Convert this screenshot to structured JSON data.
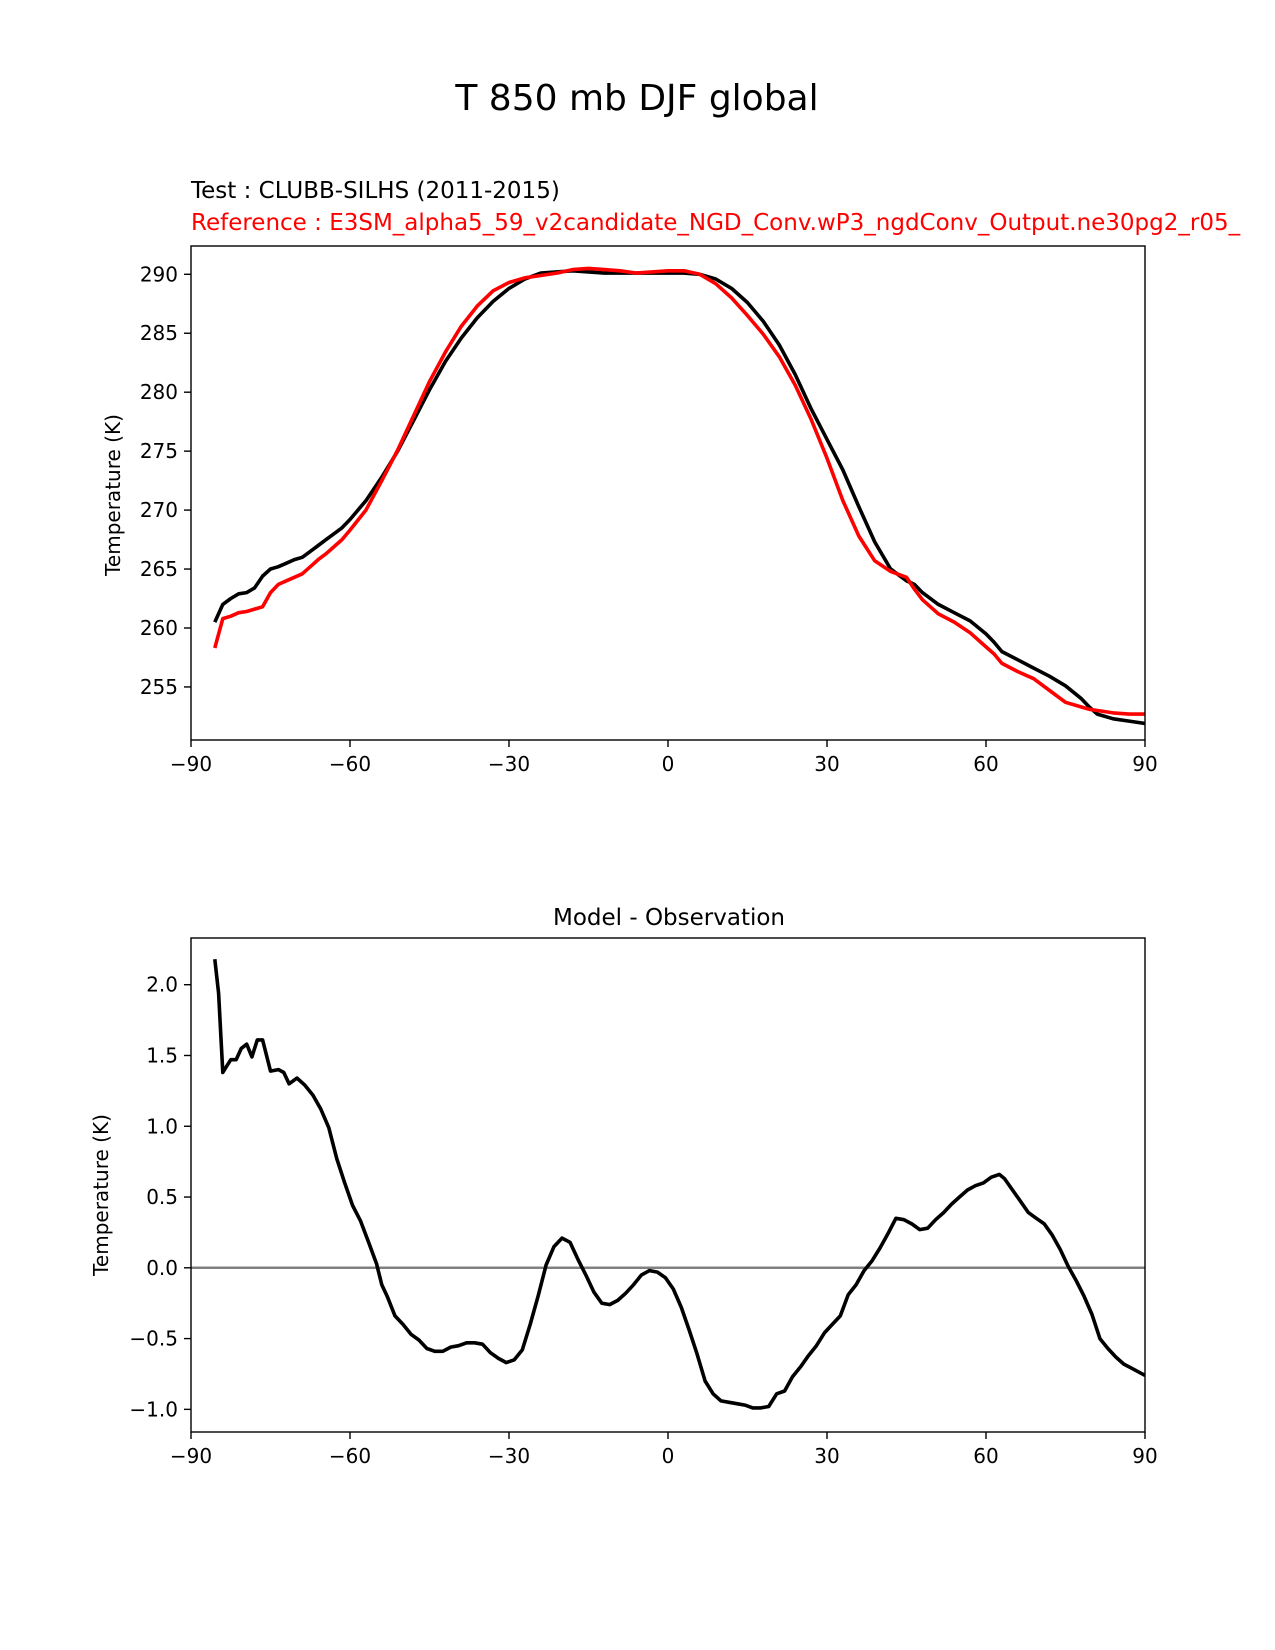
{
  "figure": {
    "suptitle": "T 850 mb DJF global"
  },
  "colors": {
    "test": "#000000",
    "reference": "#ff0000",
    "zero_line": "#808080",
    "axes": "#000000"
  },
  "chart_data": [
    {
      "type": "line",
      "test_label": "Test : CLUBB-SILHS (2011-2015)",
      "reference_label": "Reference : E3SM_alpha5_59_v2candidate_NGD_Conv.wP3_ngdConv_Output.ne30pg2_r05_",
      "xlabel": "",
      "ylabel": "Temperature (K)",
      "xlim": [
        -90,
        90
      ],
      "ylim": [
        250.5,
        292.4
      ],
      "xticks": [
        -90,
        -60,
        -30,
        0,
        30,
        60,
        90
      ],
      "xtick_labels": [
        "−90",
        "−60",
        "−30",
        "0",
        "30",
        "60",
        "90"
      ],
      "yticks": [
        255,
        260,
        265,
        270,
        275,
        280,
        285,
        290
      ],
      "ytick_labels": [
        "255",
        "260",
        "265",
        "270",
        "275",
        "280",
        "285",
        "290"
      ],
      "grid": false,
      "series": [
        {
          "key": "test",
          "x": [
            -85.5,
            -84,
            -82.5,
            -81,
            -79.5,
            -78,
            -76.5,
            -75,
            -73.5,
            -72,
            -70.5,
            -69,
            -67.5,
            -66,
            -64.5,
            -63,
            -61.5,
            -60,
            -57,
            -54,
            -51,
            -48,
            -45,
            -42,
            -39,
            -36,
            -33,
            -30,
            -27,
            -24,
            -21,
            -18,
            -15,
            -12,
            -9,
            -6,
            -3,
            0,
            3,
            6,
            9,
            12,
            15,
            18,
            21,
            24,
            27,
            30,
            33,
            36,
            39,
            42,
            45,
            46.5,
            48,
            51,
            54,
            57,
            60,
            61.5,
            63,
            66,
            69,
            72,
            75,
            78,
            79.5,
            81,
            84,
            87,
            90
          ],
          "values": [
            260.5,
            262.0,
            262.5,
            262.9,
            263.0,
            263.4,
            264.4,
            265.0,
            265.2,
            265.5,
            265.8,
            266.0,
            266.5,
            267.0,
            267.5,
            268.0,
            268.5,
            269.2,
            270.8,
            272.8,
            275.0,
            277.6,
            280.2,
            282.6,
            284.6,
            286.3,
            287.7,
            288.8,
            289.6,
            290.1,
            290.2,
            290.3,
            290.2,
            290.1,
            290.1,
            290.1,
            290.1,
            290.1,
            290.1,
            290.0,
            289.6,
            288.8,
            287.6,
            286.0,
            284.0,
            281.5,
            278.6,
            276.0,
            273.4,
            270.3,
            267.3,
            265.0,
            264.0,
            263.7,
            263.0,
            262.0,
            261.3,
            260.6,
            259.5,
            258.8,
            258.0,
            257.3,
            256.6,
            255.9,
            255.1,
            254.0,
            253.3,
            252.7,
            252.3,
            252.1,
            251.9
          ]
        },
        {
          "key": "reference",
          "x": [
            -85.5,
            -84,
            -82.5,
            -81,
            -79.5,
            -78,
            -76.5,
            -75,
            -73.5,
            -72,
            -70.5,
            -69,
            -67.5,
            -66,
            -64.5,
            -63,
            -61.5,
            -60,
            -57,
            -54,
            -51,
            -48,
            -45,
            -42,
            -39,
            -36,
            -33,
            -30,
            -27,
            -24,
            -21,
            -18,
            -15,
            -12,
            -9,
            -6,
            -3,
            0,
            3,
            6,
            9,
            12,
            15,
            18,
            21,
            24,
            27,
            30,
            33,
            36,
            39,
            42,
            45,
            46.5,
            48,
            51,
            54,
            57,
            60,
            61.5,
            63,
            66,
            69,
            72,
            75,
            78,
            79.5,
            81,
            84,
            87,
            90
          ],
          "values": [
            258.3,
            260.8,
            261.0,
            261.3,
            261.4,
            261.6,
            261.8,
            263.0,
            263.7,
            264.0,
            264.3,
            264.6,
            265.2,
            265.8,
            266.3,
            266.9,
            267.5,
            268.3,
            270.0,
            272.5,
            275.1,
            278.0,
            280.9,
            283.4,
            285.6,
            287.3,
            288.6,
            289.3,
            289.7,
            289.9,
            290.1,
            290.4,
            290.5,
            290.4,
            290.3,
            290.1,
            290.2,
            290.3,
            290.3,
            290.0,
            289.2,
            288.0,
            286.5,
            284.9,
            283.0,
            280.6,
            277.7,
            274.4,
            270.8,
            267.8,
            265.7,
            264.8,
            264.3,
            263.3,
            262.4,
            261.2,
            260.5,
            259.6,
            258.4,
            257.8,
            257.0,
            256.3,
            255.7,
            254.7,
            253.7,
            253.3,
            253.1,
            253.0,
            252.8,
            252.7,
            252.7
          ]
        }
      ]
    },
    {
      "type": "line",
      "title": "Model - Observation",
      "xlabel": "",
      "ylabel": "Temperature (K)",
      "xlim": [
        -90,
        90
      ],
      "ylim": [
        -1.16,
        2.33
      ],
      "xticks": [
        -90,
        -60,
        -30,
        0,
        30,
        60,
        90
      ],
      "xtick_labels": [
        "−90",
        "−60",
        "−30",
        "0",
        "30",
        "60",
        "90"
      ],
      "yticks": [
        -1.0,
        -0.5,
        0.0,
        0.5,
        1.0,
        1.5,
        2.0
      ],
      "ytick_labels": [
        "−1.0",
        "−0.5",
        "0.0",
        "0.5",
        "1.0",
        "1.5",
        "2.0"
      ],
      "grid": false,
      "zero_line": 0,
      "series": [
        {
          "key": "test",
          "x": [
            -85.5,
            -84.8,
            -84,
            -83.5,
            -82.5,
            -81.5,
            -80.5,
            -79.5,
            -78.5,
            -77.5,
            -76.5,
            -75,
            -73.5,
            -72.5,
            -71.5,
            -70,
            -68.5,
            -67,
            -65.5,
            -64,
            -62.5,
            -61,
            -59.5,
            -58,
            -56.5,
            -55,
            -54,
            -53,
            -51.5,
            -50,
            -48.5,
            -47,
            -45.5,
            -44,
            -42.5,
            -41,
            -39.5,
            -38,
            -36.5,
            -35,
            -33.5,
            -32,
            -30.5,
            -29,
            -27.5,
            -26,
            -24.5,
            -23,
            -21.5,
            -20,
            -18.5,
            -17,
            -15.5,
            -14,
            -12.5,
            -11,
            -9.5,
            -8,
            -6.5,
            -5,
            -3.5,
            -2,
            -0.5,
            1,
            2.5,
            4,
            5.5,
            7,
            8.5,
            10,
            11.5,
            13,
            14.5,
            16,
            17.5,
            19,
            20.5,
            22,
            23.5,
            25,
            26.5,
            28,
            29.5,
            31,
            32.5,
            34,
            35.5,
            37,
            38.5,
            40,
            41.5,
            43,
            44.5,
            46,
            47.5,
            49,
            50.5,
            52,
            53.5,
            55,
            56.5,
            58,
            59.5,
            61,
            62.5,
            63.5,
            65,
            66.5,
            68,
            69.5,
            71,
            72.5,
            74,
            75.5,
            77,
            78.5,
            80,
            81.5,
            83,
            84.5,
            86,
            87.5,
            89,
            90
          ],
          "values": [
            2.18,
            1.94,
            1.38,
            1.41,
            1.47,
            1.47,
            1.55,
            1.58,
            1.49,
            1.61,
            1.61,
            1.39,
            1.4,
            1.38,
            1.3,
            1.34,
            1.29,
            1.22,
            1.12,
            0.99,
            0.77,
            0.6,
            0.44,
            0.33,
            0.18,
            0.03,
            -0.12,
            -0.2,
            -0.34,
            -0.4,
            -0.47,
            -0.51,
            -0.57,
            -0.59,
            -0.59,
            -0.56,
            -0.55,
            -0.53,
            -0.53,
            -0.54,
            -0.6,
            -0.64,
            -0.67,
            -0.65,
            -0.58,
            -0.4,
            -0.2,
            0.02,
            0.15,
            0.21,
            0.18,
            0.06,
            -0.05,
            -0.17,
            -0.25,
            -0.26,
            -0.23,
            -0.18,
            -0.12,
            -0.05,
            -0.02,
            -0.03,
            -0.07,
            -0.15,
            -0.28,
            -0.44,
            -0.61,
            -0.8,
            -0.89,
            -0.94,
            -0.95,
            -0.96,
            -0.97,
            -0.99,
            -0.99,
            -0.98,
            -0.89,
            -0.87,
            -0.77,
            -0.7,
            -0.62,
            -0.55,
            -0.46,
            -0.4,
            -0.34,
            -0.19,
            -0.12,
            -0.02,
            0.05,
            0.14,
            0.24,
            0.35,
            0.34,
            0.31,
            0.27,
            0.28,
            0.34,
            0.39,
            0.45,
            0.5,
            0.55,
            0.58,
            0.6,
            0.64,
            0.66,
            0.63,
            0.55,
            0.47,
            0.39,
            0.35,
            0.31,
            0.23,
            0.13,
            0.01,
            -0.09,
            -0.2,
            -0.33,
            -0.5,
            -0.57,
            -0.63,
            -0.68,
            -0.71,
            -0.74,
            -0.76
          ]
        }
      ]
    }
  ]
}
